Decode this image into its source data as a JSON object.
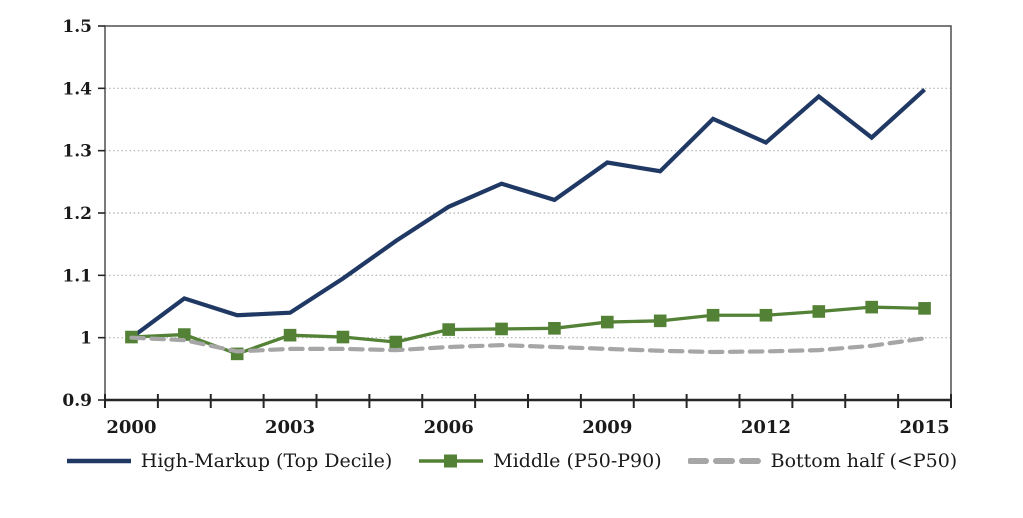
{
  "figure": {
    "background": "#ffffff"
  },
  "chart_data": {
    "type": "line",
    "title": "",
    "xlabel": "",
    "ylabel": "",
    "x": [
      2000,
      2001,
      2002,
      2003,
      2004,
      2005,
      2006,
      2007,
      2008,
      2009,
      2010,
      2011,
      2012,
      2013,
      2014,
      2015
    ],
    "x_label_every": 3,
    "ylim": [
      0.9,
      1.5
    ],
    "y_ticks": [
      0.9,
      1.0,
      1.1,
      1.2,
      1.3,
      1.4,
      1.5
    ],
    "y_tick_labels": [
      "0.9",
      "1",
      "1.1",
      "1.2",
      "1.3",
      "1.4",
      "1.5"
    ],
    "grid": "horizontal-dotted",
    "legend_position": "bottom-center",
    "axis_color": "#262626",
    "border_color": "#595959",
    "gridline_color": "#b0b0b0",
    "text_color": "#1a1a1a",
    "series": [
      {
        "name": "High-Markup (Top Decile)",
        "color": "#1f3864",
        "style": "solid",
        "marker": "none",
        "line_width": 4.2,
        "values": [
          1.0,
          1.063,
          1.036,
          1.04,
          1.095,
          1.155,
          1.21,
          1.247,
          1.221,
          1.281,
          1.267,
          1.351,
          1.313,
          1.387,
          1.321,
          1.398
        ]
      },
      {
        "name": "Middle (P50-P90)",
        "color": "#538135",
        "style": "solid",
        "marker": "square",
        "line_width": 3.3,
        "values": [
          1.001,
          1.005,
          0.974,
          1.004,
          1.001,
          0.993,
          1.013,
          1.014,
          1.015,
          1.025,
          1.027,
          1.036,
          1.036,
          1.042,
          1.049,
          1.047
        ]
      },
      {
        "name": "Bottom half (<P50)",
        "color": "#a6a6a6",
        "style": "dashed",
        "marker": "none",
        "line_width": 4.2,
        "values": [
          1.0,
          0.996,
          0.978,
          0.982,
          0.982,
          0.98,
          0.985,
          0.988,
          0.985,
          0.982,
          0.979,
          0.977,
          0.978,
          0.98,
          0.987,
          0.999
        ]
      }
    ]
  }
}
